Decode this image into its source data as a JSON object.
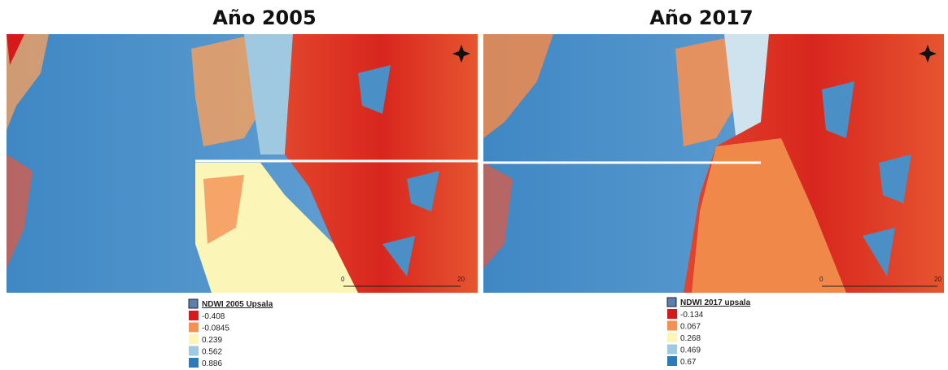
{
  "panels": [
    {
      "title": "Año 2005",
      "legend": {
        "title": "NDWI 2005 Upsala",
        "items": [
          {
            "label": "-0.408",
            "color": "#d7191c"
          },
          {
            "label": "-0.0845",
            "color": "#f59053"
          },
          {
            "label": "0.239",
            "color": "#fbf5b8"
          },
          {
            "label": "0.562",
            "color": "#9ec9e0"
          },
          {
            "label": "0.886",
            "color": "#2c7bb6"
          }
        ]
      },
      "scale": {
        "start": "0",
        "end": "20"
      }
    },
    {
      "title": "Año 2017",
      "legend": {
        "title": "NDWI 2017 upsala",
        "items": [
          {
            "label": "-0.134",
            "color": "#d7191c"
          },
          {
            "label": "0.067",
            "color": "#f59053"
          },
          {
            "label": "0.268",
            "color": "#fbf5b8"
          },
          {
            "label": "0.469",
            "color": "#9ec9e0"
          },
          {
            "label": "0.67",
            "color": "#2c7bb6"
          }
        ]
      },
      "scale": {
        "start": "0",
        "end": "20"
      }
    }
  ]
}
